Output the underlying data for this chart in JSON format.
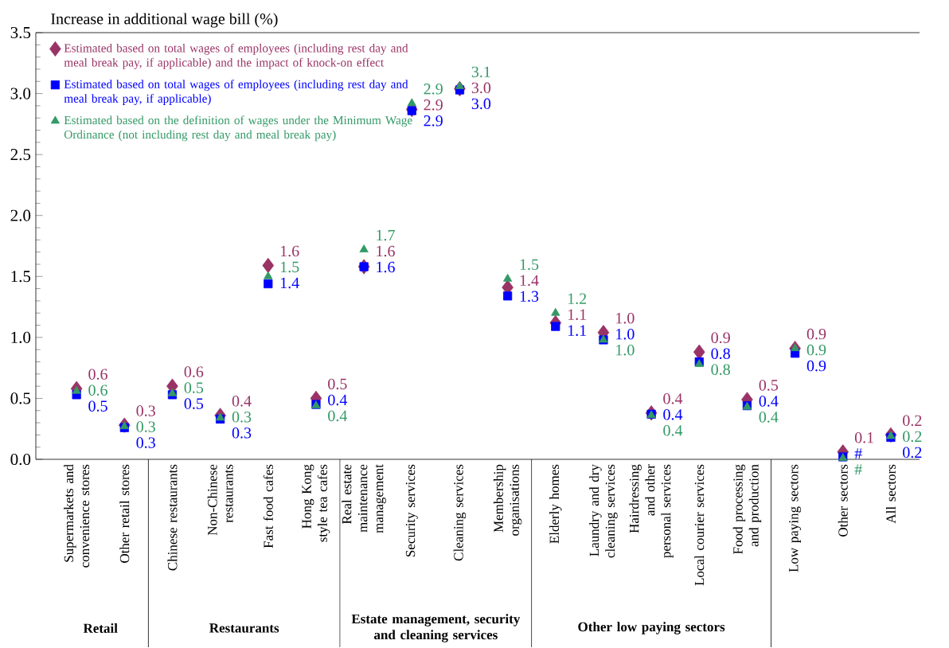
{
  "chart_data": {
    "type": "scatter",
    "ylabel": "Increase in additional wage bill (%)",
    "categories": [
      "Supermarkets and convenience stores",
      "Other retail stores",
      "Chinese restaurants",
      "Non-Chinese restaurants",
      "Fast food cafes",
      "Hong Kong style tea cafes",
      "Real estate maintenance management",
      "Security services",
      "Cleaning services",
      "Membership organisations",
      "Elderly homes",
      "Laundry and dry cleaning services",
      "Hairdressing and other personal services",
      "Local courier services",
      "Food processing and production",
      "Low paying sectors",
      "Other sectors",
      "All sectors"
    ],
    "series": [
      {
        "name": "Estimated based on total wages of employees (including rest day and meal break pay, if applicable) and the impact of knock-on effect",
        "color": "#993366",
        "marker": "diamond",
        "values": [
          0.58,
          0.28,
          0.6,
          0.36,
          1.59,
          0.5,
          1.58,
          2.87,
          3.04,
          1.41,
          1.12,
          1.04,
          0.38,
          0.88,
          0.49,
          0.91,
          0.06,
          0.2
        ],
        "value_labels": [
          "0.6",
          "0.3",
          "0.6",
          "0.4",
          "1.6",
          "0.5",
          "1.6",
          "2.9",
          "3.0",
          "1.4",
          "1.1",
          "1.0",
          "0.4",
          "0.9",
          "0.5",
          "0.9",
          "0.1",
          "0.2"
        ]
      },
      {
        "name": "Estimated based on total wages of employees (including rest day and meal break pay, if applicable)",
        "color": "#0000ff",
        "marker": "square",
        "values": [
          0.53,
          0.26,
          0.53,
          0.33,
          1.44,
          0.45,
          1.58,
          2.86,
          3.03,
          1.34,
          1.09,
          0.98,
          0.37,
          0.8,
          0.44,
          0.87,
          0.02,
          0.18
        ],
        "value_labels": [
          "0.5",
          "0.3",
          "0.5",
          "0.3",
          "1.4",
          "0.4",
          "1.6",
          "2.9",
          "3.0",
          "1.3",
          "1.1",
          "1.0",
          "0.4",
          "0.8",
          "0.4",
          "0.9",
          "#",
          "0.2"
        ]
      },
      {
        "name": "Estimated based on the definition of wages under the Minimum Wage Ordinance (not including rest day and meal break pay)",
        "color": "#339966",
        "marker": "triangle",
        "values": [
          0.56,
          0.27,
          0.54,
          0.34,
          1.5,
          0.44,
          1.72,
          2.92,
          3.06,
          1.48,
          1.2,
          0.98,
          0.36,
          0.78,
          0.43,
          0.91,
          0.01,
          0.19
        ],
        "value_labels": [
          "0.6",
          "0.3",
          "0.5",
          "0.3",
          "1.5",
          "0.4",
          "1.7",
          "2.9",
          "3.1",
          "1.5",
          "1.2",
          "1.0",
          "0.4",
          "0.8",
          "0.4",
          "0.9",
          "#",
          "0.2"
        ]
      }
    ],
    "ylim": [
      0,
      3.5
    ],
    "yticks": [
      {
        "value": 0,
        "label": "0.0"
      },
      {
        "value": 0.5,
        "label": "0.5"
      },
      {
        "value": 1,
        "label": "1.0"
      },
      {
        "value": 1.5,
        "label": "1.5"
      },
      {
        "value": 2,
        "label": "2.0"
      },
      {
        "value": 2.5,
        "label": "2.5"
      },
      {
        "value": 3,
        "label": "3.0"
      },
      {
        "value": 3.5,
        "label": "3.5"
      }
    ],
    "legend": "top left",
    "grid": false,
    "annotations": [
      "Retail",
      "Restaurants",
      "Estate management, security and cleaning services",
      "Other low paying sectors"
    ]
  }
}
